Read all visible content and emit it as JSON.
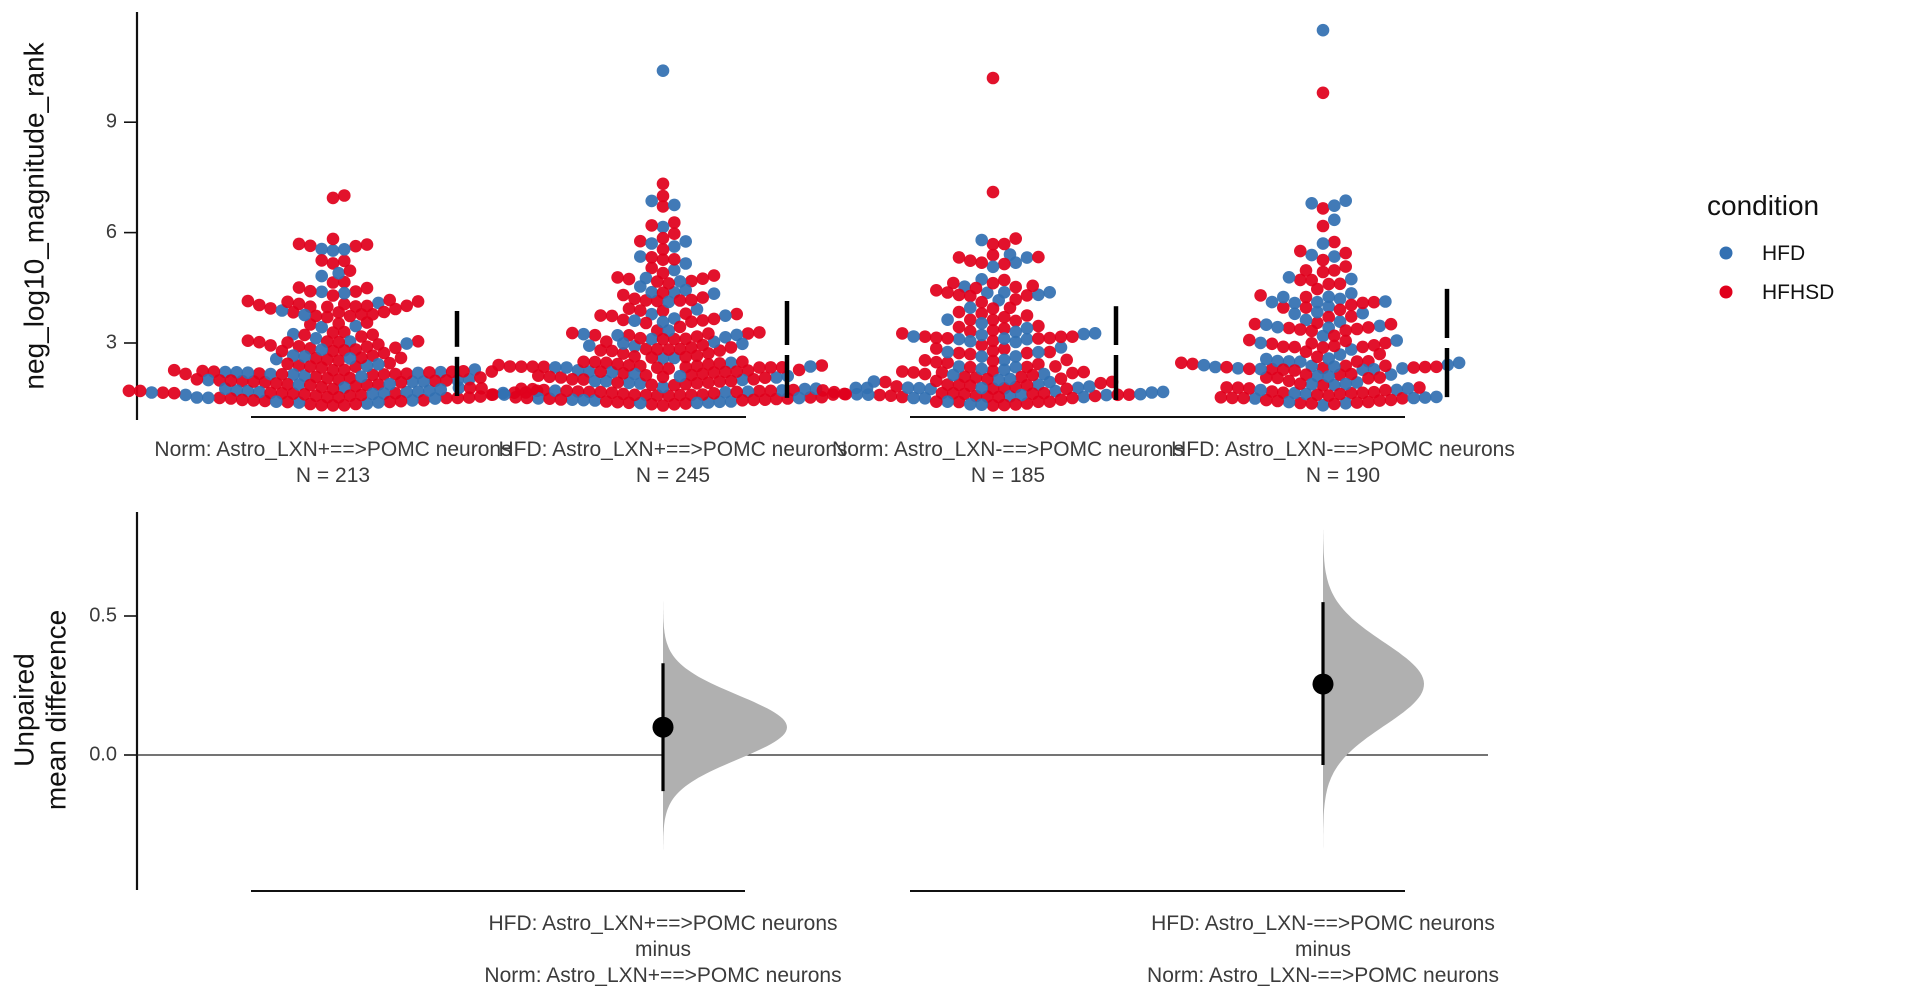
{
  "chart_data": [
    {
      "type": "scatter",
      "subtype": "swarm",
      "panel": "top",
      "ylabel": "neg_log10_magnitude_rank",
      "ylim": [
        1.3,
        12.0
      ],
      "yticks": [
        3,
        6,
        9
      ],
      "ytick_labels": [
        "3",
        "6",
        "9"
      ],
      "legend": {
        "title": "condition",
        "placement": "right",
        "entries": [
          {
            "name": "HFD",
            "color": "#3370b2"
          },
          {
            "name": "HFHSD",
            "color": "#e0001c"
          }
        ]
      },
      "groups": [
        {
          "label": "Norm: Astro_LXN+==>POMC neurons",
          "n_label": "N = 213",
          "n": 213,
          "gap_bar": {
            "lower": 1.56,
            "mid": 2.76,
            "upper": 3.87
          },
          "value_bins": [
            {
              "lo": 1.3,
              "hi": 1.8,
              "HFD": 22,
              "HFHSD": 38
            },
            {
              "lo": 1.8,
              "hi": 2.4,
              "HFD": 18,
              "HFHSD": 40
            },
            {
              "lo": 2.4,
              "hi": 3.2,
              "HFD": 9,
              "HFHSD": 26
            },
            {
              "lo": 3.2,
              "hi": 4.0,
              "HFD": 5,
              "HFHSD": 20
            },
            {
              "lo": 4.0,
              "hi": 4.6,
              "HFD": 3,
              "HFHSD": 14
            },
            {
              "lo": 4.6,
              "hi": 5.3,
              "HFD": 2,
              "HFHSD": 6
            },
            {
              "lo": 5.3,
              "hi": 6.0,
              "HFD": 3,
              "HFHSD": 5
            },
            {
              "lo": 6.9,
              "hi": 7.2,
              "HFD": 0,
              "HFHSD": 2
            }
          ]
        },
        {
          "label": "HFD: Astro_LXN+==>POMC neurons",
          "n_label": "N = 245",
          "n": 245,
          "gap_bar": {
            "lower": 1.51,
            "mid": 2.81,
            "upper": 4.14
          },
          "value_bins": [
            {
              "lo": 1.3,
              "hi": 1.8,
              "HFD": 20,
              "HFHSD": 44
            },
            {
              "lo": 1.8,
              "hi": 2.4,
              "HFD": 16,
              "HFHSD": 40
            },
            {
              "lo": 2.4,
              "hi": 3.2,
              "HFD": 10,
              "HFHSD": 30
            },
            {
              "lo": 3.2,
              "hi": 4.0,
              "HFD": 10,
              "HFHSD": 20
            },
            {
              "lo": 4.0,
              "hi": 4.8,
              "HFD": 8,
              "HFHSD": 14
            },
            {
              "lo": 4.8,
              "hi": 5.6,
              "HFD": 3,
              "HFHSD": 7
            },
            {
              "lo": 5.6,
              "hi": 6.5,
              "HFD": 4,
              "HFHSD": 5
            },
            {
              "lo": 6.7,
              "hi": 7.4,
              "HFD": 2,
              "HFHSD": 3
            },
            {
              "lo": 10.4,
              "hi": 10.4,
              "HFD": 1,
              "HFHSD": 0
            }
          ]
        },
        {
          "label": "Norm: Astro_LXN-==>POMC neurons",
          "n_label": "N = 185",
          "n": 185,
          "gap_bar": {
            "lower": 1.45,
            "mid": 2.81,
            "upper": 4.0
          },
          "value_bins": [
            {
              "lo": 1.3,
              "hi": 1.8,
              "HFD": 20,
              "HFHSD": 30
            },
            {
              "lo": 1.8,
              "hi": 2.4,
              "HFD": 12,
              "HFHSD": 26
            },
            {
              "lo": 2.4,
              "hi": 3.2,
              "HFD": 12,
              "HFHSD": 22
            },
            {
              "lo": 3.2,
              "hi": 4.0,
              "HFD": 8,
              "HFHSD": 15
            },
            {
              "lo": 4.0,
              "hi": 4.6,
              "HFD": 6,
              "HFHSD": 10
            },
            {
              "lo": 4.6,
              "hi": 5.3,
              "HFD": 3,
              "HFHSD": 6
            },
            {
              "lo": 5.3,
              "hi": 5.9,
              "HFD": 3,
              "HFHSD": 6
            },
            {
              "lo": 7.1,
              "hi": 7.1,
              "HFD": 0,
              "HFHSD": 1
            },
            {
              "lo": 10.2,
              "hi": 10.2,
              "HFD": 0,
              "HFHSD": 1
            }
          ]
        },
        {
          "label": "HFD: Astro_LXN-==>POMC neurons",
          "n_label": "N = 190",
          "n": 190,
          "gap_bar": {
            "lower": 1.53,
            "mid": 3.0,
            "upper": 4.47
          },
          "value_bins": [
            {
              "lo": 1.3,
              "hi": 1.8,
              "HFD": 12,
              "HFHSD": 26
            },
            {
              "lo": 1.8,
              "hi": 2.5,
              "HFD": 20,
              "HFHSD": 24
            },
            {
              "lo": 2.5,
              "hi": 3.2,
              "HFD": 8,
              "HFHSD": 16
            },
            {
              "lo": 3.2,
              "hi": 4.0,
              "HFD": 10,
              "HFHSD": 14
            },
            {
              "lo": 4.0,
              "hi": 4.8,
              "HFD": 10,
              "HFHSD": 10
            },
            {
              "lo": 4.8,
              "hi": 5.8,
              "HFD": 3,
              "HFHSD": 8
            },
            {
              "lo": 5.8,
              "hi": 7.1,
              "HFD": 4,
              "HFHSD": 2
            },
            {
              "lo": 9.8,
              "hi": 9.8,
              "HFD": 0,
              "HFHSD": 1
            },
            {
              "lo": 11.5,
              "hi": 11.5,
              "HFD": 1,
              "HFHSD": 0
            }
          ]
        }
      ]
    },
    {
      "type": "area",
      "subtype": "bootstrap-distribution",
      "panel": "bottom",
      "ylabel_lines": [
        "Unpaired",
        "mean difference"
      ],
      "ylim": [
        -0.48,
        0.86
      ],
      "yticks": [
        0.0,
        0.5
      ],
      "ytick_labels": [
        "0.0",
        "0.5"
      ],
      "zero_line": true,
      "comparisons": [
        {
          "label_lines": [
            "HFD: Astro_LXN+==>POMC neurons",
            "minus",
            "Norm: Astro_LXN+==>POMC neurons"
          ],
          "mean_diff": 0.1,
          "ci_low": -0.13,
          "ci_high": 0.33,
          "dist_min": -0.34,
          "dist_max": 0.57,
          "dist_sd": 0.115,
          "dist_color": "#b0b0b0"
        },
        {
          "label_lines": [
            "HFD: Astro_LXN-==>POMC neurons",
            "minus",
            "Norm: Astro_LXN-==>POMC neurons"
          ],
          "mean_diff": 0.255,
          "ci_low": -0.036,
          "ci_high": 0.55,
          "dist_min": -0.42,
          "dist_max": 0.81,
          "dist_sd": 0.15,
          "dist_color": "#b0b0b0"
        }
      ]
    }
  ]
}
